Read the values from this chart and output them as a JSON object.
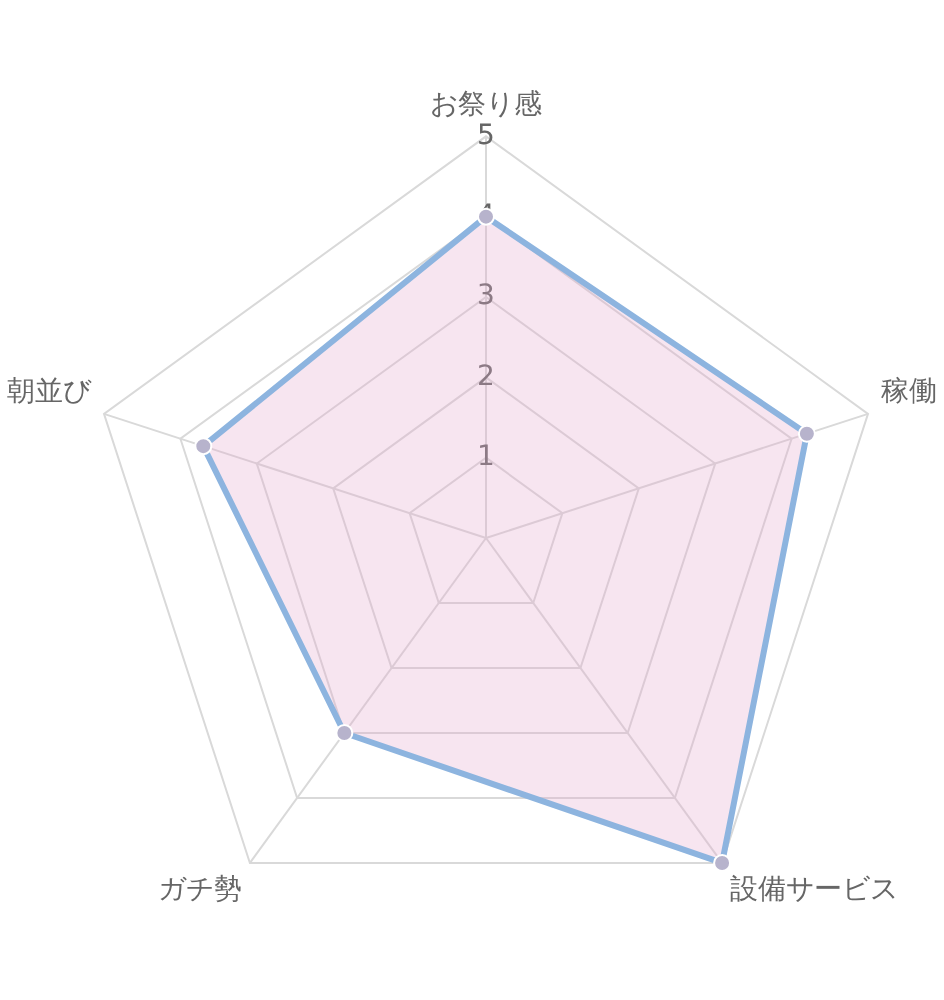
{
  "chart_data": {
    "type": "radar",
    "categories": [
      "お祭り感",
      "稼働",
      "設備サービス",
      "ガチ勢",
      "朝並び"
    ],
    "series": [
      {
        "color": "#8db4df",
        "values": [
          4,
          4.2,
          5,
          3,
          3.7
        ]
      }
    ],
    "ylim": [
      0,
      5
    ],
    "yticks": [
      1,
      2,
      3,
      4,
      5
    ],
    "grid": true,
    "marker": "circle",
    "line_style": "solid"
  }
}
